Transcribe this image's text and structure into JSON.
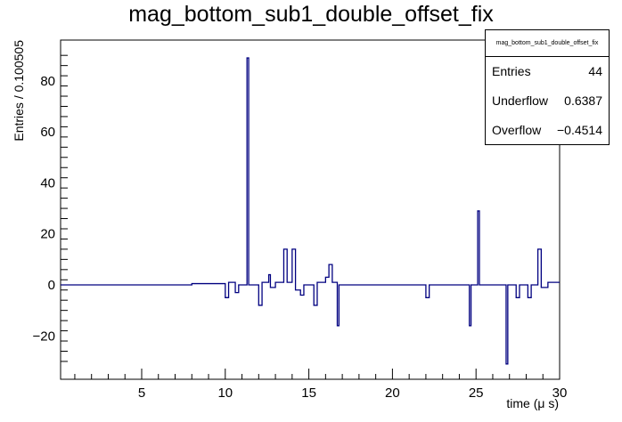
{
  "title": "mag_bottom_sub1_double_offset_fix",
  "stats": {
    "header": "mag_bottom_sub1_double_offset_fix",
    "rows": [
      {
        "label": "Entries",
        "value": "44"
      },
      {
        "label": "Underflow",
        "value": "0.6387"
      },
      {
        "label": "Overflow",
        "value": "−0.4514"
      }
    ]
  },
  "chart_data": {
    "type": "line",
    "xlabel": "time (μ s)",
    "ylabel": "Entries / 0.100505",
    "xlim": [
      0.15,
      30
    ],
    "ylim": [
      -37,
      96
    ],
    "x_ticks": [
      5,
      10,
      15,
      20,
      25,
      30
    ],
    "y_ticks": [
      -20,
      0,
      20,
      40,
      60,
      80
    ],
    "x_tick_labels": [
      "5",
      "10",
      "15",
      "20",
      "25",
      "30"
    ],
    "y_tick_labels": [
      "−20",
      "0",
      "20",
      "40",
      "60",
      "80"
    ],
    "grid": false,
    "color": "#000080",
    "step_segments": [
      {
        "x0": 0.15,
        "x1": 8.0,
        "y": 0
      },
      {
        "x0": 8.0,
        "x1": 10.0,
        "y": 0.5
      },
      {
        "x0": 10.0,
        "x1": 10.2,
        "y": -5
      },
      {
        "x0": 10.2,
        "x1": 10.6,
        "y": 1
      },
      {
        "x0": 10.6,
        "x1": 10.8,
        "y": -3
      },
      {
        "x0": 10.8,
        "x1": 11.3,
        "y": 0
      },
      {
        "x0": 11.3,
        "x1": 11.4,
        "y": 89
      },
      {
        "x0": 11.4,
        "x1": 12.0,
        "y": 0
      },
      {
        "x0": 12.0,
        "x1": 12.2,
        "y": -8
      },
      {
        "x0": 12.2,
        "x1": 12.6,
        "y": 1
      },
      {
        "x0": 12.6,
        "x1": 12.7,
        "y": 4
      },
      {
        "x0": 12.7,
        "x1": 13.0,
        "y": -1
      },
      {
        "x0": 13.0,
        "x1": 13.5,
        "y": 1
      },
      {
        "x0": 13.5,
        "x1": 13.7,
        "y": 14
      },
      {
        "x0": 13.7,
        "x1": 14.0,
        "y": 1
      },
      {
        "x0": 14.0,
        "x1": 14.2,
        "y": 14
      },
      {
        "x0": 14.2,
        "x1": 14.5,
        "y": -2
      },
      {
        "x0": 14.5,
        "x1": 14.7,
        "y": -4
      },
      {
        "x0": 14.7,
        "x1": 15.3,
        "y": 0
      },
      {
        "x0": 15.3,
        "x1": 15.5,
        "y": -8
      },
      {
        "x0": 15.5,
        "x1": 16.0,
        "y": 1
      },
      {
        "x0": 16.0,
        "x1": 16.2,
        "y": 3
      },
      {
        "x0": 16.2,
        "x1": 16.4,
        "y": 8
      },
      {
        "x0": 16.4,
        "x1": 16.7,
        "y": 1
      },
      {
        "x0": 16.7,
        "x1": 16.8,
        "y": -16
      },
      {
        "x0": 16.8,
        "x1": 18.5,
        "y": 0
      },
      {
        "x0": 18.5,
        "x1": 22.0,
        "y": 0
      },
      {
        "x0": 22.0,
        "x1": 22.2,
        "y": -5
      },
      {
        "x0": 22.2,
        "x1": 24.6,
        "y": 0
      },
      {
        "x0": 24.6,
        "x1": 24.7,
        "y": -16
      },
      {
        "x0": 24.7,
        "x1": 25.1,
        "y": 0
      },
      {
        "x0": 25.1,
        "x1": 25.2,
        "y": 29
      },
      {
        "x0": 25.2,
        "x1": 26.8,
        "y": 0
      },
      {
        "x0": 26.8,
        "x1": 26.9,
        "y": -31
      },
      {
        "x0": 26.9,
        "x1": 27.4,
        "y": 0
      },
      {
        "x0": 27.4,
        "x1": 27.6,
        "y": -5
      },
      {
        "x0": 27.6,
        "x1": 28.1,
        "y": 0
      },
      {
        "x0": 28.1,
        "x1": 28.3,
        "y": -5
      },
      {
        "x0": 28.3,
        "x1": 28.7,
        "y": 0
      },
      {
        "x0": 28.7,
        "x1": 28.8,
        "y": 14
      },
      {
        "x0": 28.8,
        "x1": 28.9,
        "y": 14
      },
      {
        "x0": 28.9,
        "x1": 29.3,
        "y": -1
      },
      {
        "x0": 29.3,
        "x1": 30.0,
        "y": 1
      }
    ]
  }
}
